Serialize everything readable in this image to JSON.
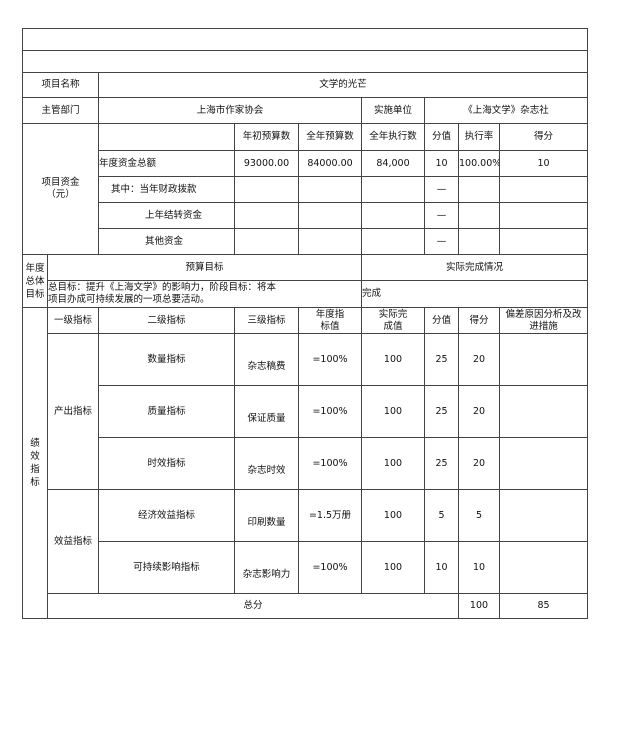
{
  "project": {
    "name_label": "项目名称",
    "name_value": "文学的光芒",
    "dept_label": "主管部门",
    "dept_value": "上海市作家协会",
    "impl_label": "实施单位",
    "impl_value": "《上海文学》杂志社"
  },
  "funds": {
    "label": "项目资金（元）",
    "headers": [
      "年初预算数",
      "全年预算数",
      "全年执行数",
      "分值",
      "执行率",
      "得分"
    ],
    "rows": [
      {
        "label": "年度资金总额",
        "values": [
          "93000.00",
          "84000.00",
          "84,000",
          "10",
          "100.00%",
          "10"
        ]
      },
      {
        "label": "其中：当年财政拨款",
        "values": [
          "",
          "",
          "",
          "—",
          "",
          ""
        ]
      },
      {
        "label": "上年结转资金",
        "values": [
          "",
          "",
          "",
          "—",
          "",
          ""
        ]
      },
      {
        "label": "其他资金",
        "values": [
          "",
          "",
          "",
          "—",
          "",
          ""
        ]
      }
    ]
  },
  "goals": {
    "label": "年度总体目标",
    "budget_header": "预算目标",
    "actual_header": "实际完成情况",
    "budget_text": "总目标：提升《上海文学》的影响力，阶段目标：将本项目办成可持续发展的一项总要活动。",
    "actual_text": "完成"
  },
  "indicators": {
    "label": "绩效指标",
    "headers": [
      "一级指标",
      "二级指标",
      "三级指标",
      "年度指标值",
      "实际完成值",
      "分值",
      "得分",
      "偏差原因分析及改进措施"
    ],
    "groups": [
      {
        "level1": "产出指标",
        "rows": [
          {
            "level2": "数量指标",
            "level3": "杂志稿费",
            "target": "=100%",
            "actual": "100",
            "score_value": "25",
            "score": "20",
            "note": ""
          },
          {
            "level2": "质量指标",
            "level3": "保证质量",
            "target": "=100%",
            "actual": "100",
            "score_value": "25",
            "score": "20",
            "note": ""
          },
          {
            "level2": "时效指标",
            "level3": "杂志时效",
            "target": "=100%",
            "actual": "100",
            "score_value": "25",
            "score": "20",
            "note": ""
          }
        ]
      },
      {
        "level1": "效益指标",
        "rows": [
          {
            "level2": "经济效益指标",
            "level3": "印刷数量",
            "target": "=1.5万册",
            "actual": "100",
            "score_value": "5",
            "score": "5",
            "note": ""
          },
          {
            "level2": "可持续影响指标",
            "level3": "杂志影响力",
            "target": "=100%",
            "actual": "100",
            "score_value": "10",
            "score": "10",
            "note": ""
          }
        ]
      }
    ],
    "total_label": "总分",
    "total_value": "100",
    "total_score": "85"
  }
}
